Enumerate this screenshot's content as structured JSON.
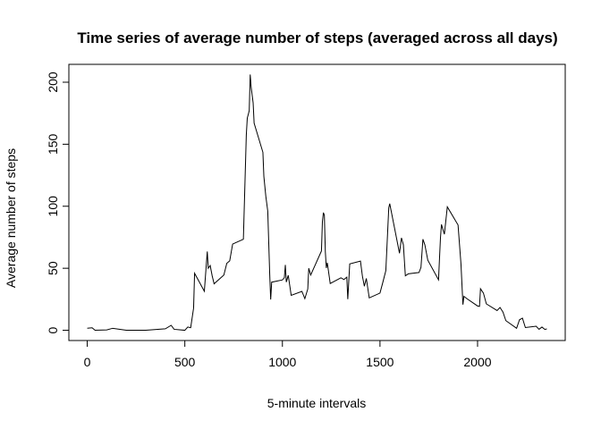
{
  "chart_data": {
    "type": "line",
    "title": "Time series of average number of steps (averaged across all days)",
    "x_label": "5-minute intervals",
    "y_label": "Average number of steps",
    "color": "#000000",
    "x": [
      0,
      25,
      40,
      100,
      130,
      200,
      300,
      400,
      430,
      445,
      500,
      515,
      530,
      545,
      550,
      600,
      615,
      620,
      630,
      640,
      650,
      700,
      715,
      730,
      745,
      800,
      815,
      820,
      830,
      835,
      840,
      850,
      855,
      900,
      905,
      915,
      925,
      935,
      940,
      945,
      1000,
      1010,
      1015,
      1020,
      1030,
      1045,
      1100,
      1115,
      1130,
      1135,
      1145,
      1200,
      1205,
      1210,
      1215,
      1220,
      1225,
      1230,
      1245,
      1300,
      1315,
      1330,
      1335,
      1345,
      1400,
      1410,
      1420,
      1430,
      1445,
      1500,
      1515,
      1530,
      1545,
      1550,
      1600,
      1610,
      1620,
      1630,
      1645,
      1700,
      1710,
      1720,
      1730,
      1745,
      1800,
      1805,
      1810,
      1815,
      1830,
      1845,
      1900,
      1915,
      1925,
      1930,
      1945,
      2000,
      2010,
      2015,
      2030,
      2045,
      2100,
      2115,
      2130,
      2145,
      2200,
      2215,
      2230,
      2245,
      2300,
      2315,
      2330,
      2345,
      2355
    ],
    "values": [
      1.7,
      2,
      0,
      0.3,
      1.6,
      0,
      0,
      1.2,
      4,
      0.8,
      0,
      2.6,
      2.1,
      18,
      46,
      31.5,
      63.5,
      50,
      52.2,
      44,
      37.5,
      44.5,
      54,
      56,
      69.5,
      73.4,
      157.5,
      171,
      177,
      206.2,
      195.9,
      183.4,
      167,
      143.5,
      124,
      108.1,
      96,
      45.2,
      24.8,
      38.8,
      40.6,
      42.4,
      52.7,
      38.9,
      44.3,
      28.2,
      31.4,
      25.5,
      33.3,
      50,
      44.6,
      63.9,
      87.6,
      94.8,
      92.8,
      63.4,
      50.2,
      54.5,
      37.7,
      42.3,
      40.9,
      42.8,
      25.1,
      53.5,
      55.8,
      43.6,
      35.5,
      41.8,
      26.1,
      30,
      38.9,
      48.1,
      98.7,
      102.1,
      62.1,
      74.5,
      68.9,
      43.9,
      45.5,
      46.6,
      50.7,
      73.4,
      68.9,
      56.5,
      40.7,
      58,
      74.7,
      85.3,
      77.4,
      99.5,
      84.9,
      53.5,
      20.7,
      27.4,
      25.5,
      19.6,
      19.3,
      33.5,
      30,
      21.3,
      15.9,
      18.4,
      14.7,
      7.8,
      1.6,
      8.5,
      9.8,
      2.2,
      3.3,
      0.8,
      2.6,
      0.7,
      1.1
    ],
    "xlim": [
      -94.2,
      2449.2
    ],
    "ylim": [
      -8.25,
      214.4
    ],
    "xticks": [
      0,
      500,
      1000,
      1500,
      2000
    ],
    "yticks": [
      0,
      50,
      100,
      150,
      200
    ]
  }
}
